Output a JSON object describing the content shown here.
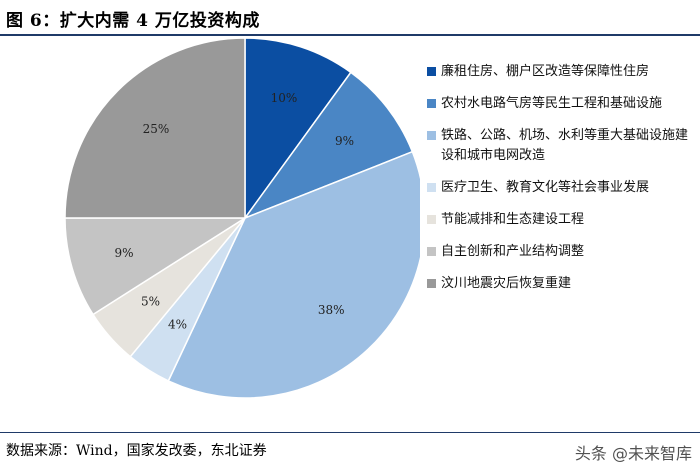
{
  "title": "图 6：扩大内需 4 万亿投资构成",
  "source": "数据来源：Wind，国家发改委，东北证券",
  "watermark": "头条 @未来智库",
  "chart_data": {
    "type": "pie",
    "title": "扩大内需 4 万亿投资构成",
    "unit": "%",
    "slices": [
      {
        "label": "廉租住房、棚户区改造等保障性住房",
        "value": 10,
        "color": "#0b4ea2"
      },
      {
        "label": "农村水电路气房等民生工程和基础设施",
        "value": 9,
        "color": "#4a86c5"
      },
      {
        "label": "铁路、公路、机场、水利等重大基础设施建设和城市电网改造",
        "value": 38,
        "color": "#9dbfe3"
      },
      {
        "label": "医疗卫生、教育文化等社会事业发展",
        "value": 4,
        "color": "#cfe0f1"
      },
      {
        "label": "节能减排和生态建设工程",
        "value": 5,
        "color": "#e6e3dd"
      },
      {
        "label": "自主创新和产业结构调整",
        "value": 9,
        "color": "#c4c4c4"
      },
      {
        "label": "汶川地震灾后恢复重建",
        "value": 25,
        "color": "#999999"
      }
    ],
    "legend_position": "right",
    "start_angle": "12 o'clock, clockwise"
  }
}
